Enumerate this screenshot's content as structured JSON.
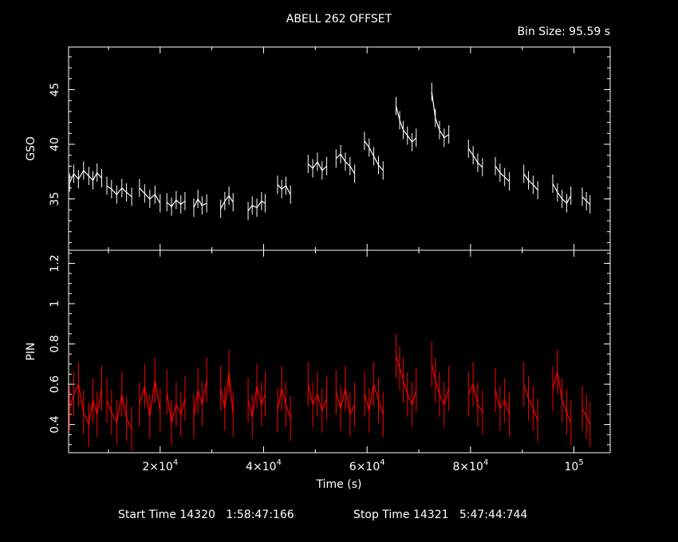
{
  "header": {
    "title": "ABELL 262 OFFSET",
    "bin_size": "Bin Size:  95.59 s"
  },
  "footer": {
    "start": "Start Time 14320   1:58:47:166",
    "stop": "Stop Time 14321   5:47:44:744"
  },
  "chart_data": [
    {
      "type": "line",
      "name": "GSO light curve",
      "color": "#ffffff",
      "ylabel": "GSO",
      "xlim": [
        2300,
        107000
      ],
      "ylim": [
        30.3,
        48.9
      ],
      "yticks": [
        35,
        40,
        45
      ],
      "ytick_labels": [
        "35",
        "40",
        "45"
      ],
      "segments": [
        {
          "x": [
            2500,
            3300,
            4200,
            5200,
            6200,
            7000,
            7800,
            8700
          ],
          "y": [
            36.5,
            37.3,
            36.8,
            37.6,
            37.1,
            36.7,
            37.4,
            36.9
          ]
        },
        {
          "x": [
            9700,
            10600,
            11600,
            12600,
            13500,
            14500
          ],
          "y": [
            36.2,
            35.9,
            35.4,
            36.0,
            35.6,
            35.2
          ]
        },
        {
          "x": [
            16000,
            17000,
            18000,
            19000,
            20000
          ],
          "y": [
            36.0,
            35.5,
            35.0,
            35.4,
            34.6
          ]
        },
        {
          "x": [
            21300,
            22200,
            23100,
            24000,
            24800
          ],
          "y": [
            34.7,
            34.3,
            34.9,
            34.5,
            34.8
          ]
        },
        {
          "x": [
            26500,
            27300,
            28100,
            29000
          ],
          "y": [
            34.2,
            35.0,
            34.4,
            34.6
          ]
        },
        {
          "x": [
            31700,
            32500,
            33300,
            34100
          ],
          "y": [
            34.1,
            34.8,
            35.3,
            34.7
          ]
        },
        {
          "x": [
            37000,
            37800,
            38700,
            39600,
            40300
          ],
          "y": [
            33.9,
            34.4,
            34.2,
            34.8,
            34.6
          ]
        },
        {
          "x": [
            42700,
            43500,
            44300,
            45200
          ],
          "y": [
            36.3,
            35.9,
            36.2,
            35.4
          ]
        },
        {
          "x": [
            48600,
            49500,
            50400,
            51300,
            52200
          ],
          "y": [
            38.2,
            37.8,
            38.4,
            37.6,
            38.0
          ]
        },
        {
          "x": [
            54000,
            54900,
            55800,
            56700,
            57600
          ],
          "y": [
            38.7,
            39.1,
            38.4,
            38.0,
            37.3
          ]
        },
        {
          "x": [
            59500,
            60400,
            61300,
            62200,
            63100
          ],
          "y": [
            40.3,
            39.7,
            38.9,
            38.1,
            37.6
          ]
        },
        {
          "x": [
            65600,
            66300,
            67000,
            67800,
            68700,
            69500
          ],
          "y": [
            43.5,
            42.2,
            41.3,
            40.8,
            40.2,
            40.6
          ]
        },
        {
          "x": [
            72500,
            73200,
            74000,
            74900,
            75800
          ],
          "y": [
            44.8,
            42.4,
            41.3,
            40.6,
            40.9
          ]
        },
        {
          "x": [
            79600,
            80500,
            81400,
            82300
          ],
          "y": [
            39.6,
            39.0,
            38.3,
            37.9
          ]
        },
        {
          "x": [
            84800,
            85700,
            86600,
            87500
          ],
          "y": [
            38.0,
            37.4,
            37.0,
            36.6
          ]
        },
        {
          "x": [
            90300,
            91200,
            92100,
            93000
          ],
          "y": [
            37.3,
            36.7,
            36.3,
            35.8
          ]
        },
        {
          "x": [
            95900,
            96800,
            97700,
            98600,
            99400
          ],
          "y": [
            36.4,
            35.6,
            35.0,
            34.6,
            35.3
          ]
        },
        {
          "x": [
            101600,
            102400,
            103100
          ],
          "y": [
            35.2,
            34.8,
            34.5
          ]
        }
      ]
    },
    {
      "type": "line",
      "name": "PIN light curve",
      "color": "#ff0000",
      "ylabel": "PIN",
      "xlabel": "Time (s)",
      "xlim": [
        2300,
        107000
      ],
      "ylim": [
        0.26,
        1.265
      ],
      "yticks": [
        0.4,
        0.6,
        0.8,
        1.0,
        1.2
      ],
      "ytick_labels": [
        "0.4",
        "0.6",
        "0.8",
        "1",
        "1.2"
      ],
      "xticks": [
        20000,
        40000,
        60000,
        80000,
        100000
      ],
      "xtick_labels": [
        {
          "mantissa": "2×10",
          "exp": "4"
        },
        {
          "mantissa": "4×10",
          "exp": "4"
        },
        {
          "mantissa": "6×10",
          "exp": "4"
        },
        {
          "mantissa": "8×10",
          "exp": "4"
        },
        {
          "mantissa": "10",
          "exp": "5"
        }
      ],
      "segments": [
        {
          "x": [
            2500,
            3300,
            4200,
            5200,
            6200,
            7000,
            7800,
            8700
          ],
          "y": [
            0.48,
            0.55,
            0.6,
            0.46,
            0.4,
            0.52,
            0.45,
            0.58
          ]
        },
        {
          "x": [
            9700,
            10600,
            11600,
            12600,
            13500,
            14500
          ],
          "y": [
            0.52,
            0.46,
            0.41,
            0.55,
            0.43,
            0.38
          ]
        },
        {
          "x": [
            16000,
            17000,
            18000,
            19000,
            20000
          ],
          "y": [
            0.5,
            0.59,
            0.44,
            0.62,
            0.47
          ]
        },
        {
          "x": [
            21300,
            22200,
            23100,
            24000,
            24800
          ],
          "y": [
            0.56,
            0.41,
            0.5,
            0.45,
            0.53
          ]
        },
        {
          "x": [
            26500,
            27300,
            28100,
            29000
          ],
          "y": [
            0.44,
            0.57,
            0.5,
            0.62
          ]
        },
        {
          "x": [
            31700,
            32500,
            33300,
            34100
          ],
          "y": [
            0.58,
            0.48,
            0.66,
            0.45
          ]
        },
        {
          "x": [
            37000,
            37800,
            38700,
            39600,
            40300
          ],
          "y": [
            0.52,
            0.44,
            0.59,
            0.5,
            0.55
          ]
        },
        {
          "x": [
            42700,
            43500,
            44300,
            45200
          ],
          "y": [
            0.47,
            0.58,
            0.5,
            0.43
          ]
        },
        {
          "x": [
            48600,
            49500,
            50400,
            51300,
            52200
          ],
          "y": [
            0.6,
            0.5,
            0.55,
            0.47,
            0.53
          ]
        },
        {
          "x": [
            54000,
            54900,
            55800,
            56700,
            57600
          ],
          "y": [
            0.56,
            0.48,
            0.58,
            0.45,
            0.5
          ]
        },
        {
          "x": [
            59500,
            60400,
            61300,
            62200,
            63100
          ],
          "y": [
            0.55,
            0.47,
            0.6,
            0.52,
            0.45
          ]
        },
        {
          "x": [
            65600,
            66300,
            67000,
            67800,
            68700,
            69500
          ],
          "y": [
            0.74,
            0.68,
            0.62,
            0.55,
            0.5,
            0.57
          ]
        },
        {
          "x": [
            72500,
            73200,
            74000,
            74900,
            75800
          ],
          "y": [
            0.7,
            0.62,
            0.55,
            0.5,
            0.58
          ]
        },
        {
          "x": [
            79600,
            80500,
            81400,
            82300
          ],
          "y": [
            0.55,
            0.6,
            0.5,
            0.46
          ]
        },
        {
          "x": [
            84800,
            85700,
            86600,
            87500
          ],
          "y": [
            0.57,
            0.48,
            0.52,
            0.45
          ]
        },
        {
          "x": [
            90300,
            91200,
            92100,
            93000
          ],
          "y": [
            0.6,
            0.53,
            0.48,
            0.42
          ]
        },
        {
          "x": [
            95900,
            96800,
            97700,
            98600,
            99400
          ],
          "y": [
            0.58,
            0.66,
            0.52,
            0.46,
            0.41
          ]
        },
        {
          "x": [
            101600,
            102400,
            103100
          ],
          "y": [
            0.48,
            0.44,
            0.4
          ]
        }
      ]
    }
  ]
}
